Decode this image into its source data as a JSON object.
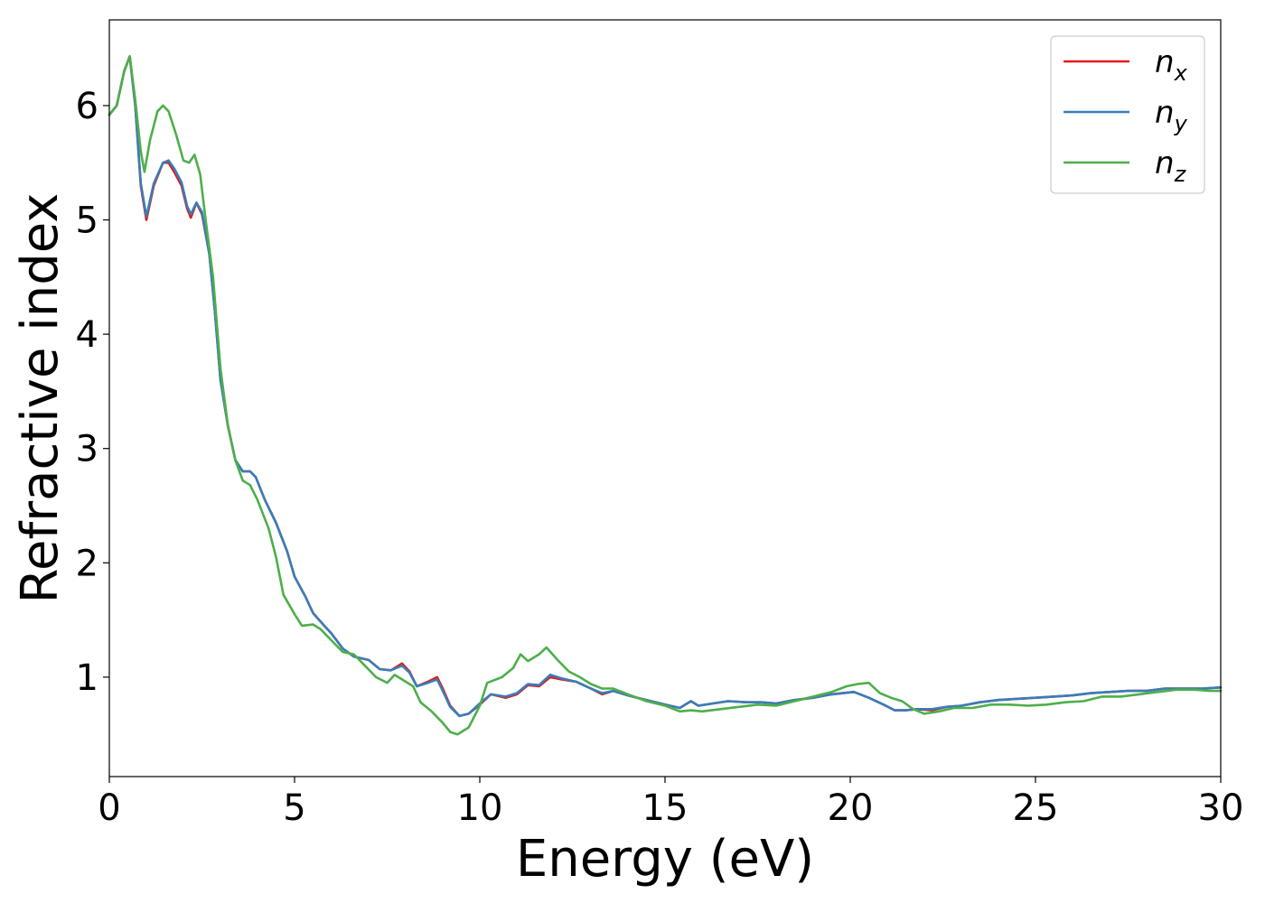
{
  "chart_data": {
    "type": "line",
    "title": "",
    "xlabel": "Energy (eV)",
    "ylabel": "Refractive index",
    "xlim": [
      0,
      30
    ],
    "ylim": [
      0.13,
      6.75
    ],
    "xticks": [
      0,
      5,
      10,
      15,
      20,
      25,
      30
    ],
    "xtick_labels": [
      "0",
      "5",
      "10",
      "15",
      "20",
      "25",
      "30"
    ],
    "yticks": [
      1,
      2,
      3,
      4,
      5,
      6
    ],
    "ytick_labels": [
      "1",
      "2",
      "3",
      "4",
      "5",
      "6"
    ],
    "grid": false,
    "legend_position": "top-right",
    "series": [
      {
        "name": "n_x",
        "label_base": "n",
        "label_sub": "x",
        "color": "#e41a1c",
        "points": [
          [
            0,
            5.92
          ],
          [
            0.2,
            6.0
          ],
          [
            0.4,
            6.3
          ],
          [
            0.55,
            6.43
          ],
          [
            0.7,
            6.0
          ],
          [
            0.85,
            5.3
          ],
          [
            1.0,
            5.0
          ],
          [
            1.2,
            5.3
          ],
          [
            1.45,
            5.5
          ],
          [
            1.6,
            5.5
          ],
          [
            1.75,
            5.42
          ],
          [
            1.95,
            5.3
          ],
          [
            2.1,
            5.1
          ],
          [
            2.2,
            5.02
          ],
          [
            2.35,
            5.15
          ],
          [
            2.5,
            5.05
          ],
          [
            2.7,
            4.7
          ],
          [
            2.85,
            4.2
          ],
          [
            3.0,
            3.6
          ],
          [
            3.2,
            3.2
          ],
          [
            3.4,
            2.9
          ],
          [
            3.6,
            2.8
          ],
          [
            3.8,
            2.8
          ],
          [
            3.95,
            2.75
          ],
          [
            4.2,
            2.55
          ],
          [
            4.5,
            2.35
          ],
          [
            4.8,
            2.1
          ],
          [
            5.0,
            1.88
          ],
          [
            5.3,
            1.7
          ],
          [
            5.5,
            1.56
          ],
          [
            5.8,
            1.45
          ],
          [
            6.0,
            1.38
          ],
          [
            6.3,
            1.25
          ],
          [
            6.6,
            1.18
          ],
          [
            7.0,
            1.15
          ],
          [
            7.3,
            1.07
          ],
          [
            7.6,
            1.06
          ],
          [
            7.9,
            1.12
          ],
          [
            8.1,
            1.05
          ],
          [
            8.3,
            0.92
          ],
          [
            8.6,
            0.96
          ],
          [
            8.85,
            1.0
          ],
          [
            9.0,
            0.9
          ],
          [
            9.2,
            0.75
          ],
          [
            9.45,
            0.66
          ],
          [
            9.7,
            0.68
          ],
          [
            10.0,
            0.76
          ],
          [
            10.3,
            0.85
          ],
          [
            10.7,
            0.82
          ],
          [
            11.0,
            0.85
          ],
          [
            11.3,
            0.93
          ],
          [
            11.6,
            0.92
          ],
          [
            11.9,
            1.0
          ],
          [
            12.2,
            0.98
          ],
          [
            12.6,
            0.96
          ],
          [
            13.0,
            0.9
          ],
          [
            13.3,
            0.85
          ],
          [
            13.6,
            0.88
          ],
          [
            14.0,
            0.84
          ],
          [
            14.5,
            0.8
          ],
          [
            15.0,
            0.76
          ],
          [
            15.4,
            0.73
          ],
          [
            15.7,
            0.79
          ],
          [
            15.9,
            0.75
          ],
          [
            16.3,
            0.77
          ],
          [
            16.7,
            0.79
          ],
          [
            17.2,
            0.78
          ],
          [
            17.6,
            0.78
          ],
          [
            18.0,
            0.77
          ],
          [
            18.5,
            0.8
          ],
          [
            19.0,
            0.82
          ],
          [
            19.5,
            0.85
          ],
          [
            19.8,
            0.86
          ],
          [
            20.1,
            0.87
          ],
          [
            20.5,
            0.82
          ],
          [
            20.9,
            0.76
          ],
          [
            21.2,
            0.71
          ],
          [
            21.5,
            0.71
          ],
          [
            21.8,
            0.72
          ],
          [
            22.2,
            0.71
          ],
          [
            22.6,
            0.74
          ],
          [
            23.0,
            0.75
          ],
          [
            23.5,
            0.78
          ],
          [
            24.0,
            0.8
          ],
          [
            24.5,
            0.81
          ],
          [
            25.0,
            0.82
          ],
          [
            25.5,
            0.83
          ],
          [
            26.0,
            0.84
          ],
          [
            26.5,
            0.86
          ],
          [
            27.0,
            0.87
          ],
          [
            27.5,
            0.88
          ],
          [
            28.0,
            0.88
          ],
          [
            28.5,
            0.9
          ],
          [
            29.0,
            0.9
          ],
          [
            29.5,
            0.9
          ],
          [
            30.0,
            0.91
          ]
        ]
      },
      {
        "name": "n_y",
        "label_base": "n",
        "label_sub": "y",
        "color": "#377eb8",
        "points": [
          [
            0,
            5.92
          ],
          [
            0.2,
            6.0
          ],
          [
            0.4,
            6.3
          ],
          [
            0.55,
            6.43
          ],
          [
            0.7,
            6.0
          ],
          [
            0.85,
            5.32
          ],
          [
            1.0,
            5.03
          ],
          [
            1.2,
            5.32
          ],
          [
            1.45,
            5.5
          ],
          [
            1.6,
            5.52
          ],
          [
            1.75,
            5.45
          ],
          [
            1.95,
            5.33
          ],
          [
            2.1,
            5.12
          ],
          [
            2.2,
            5.05
          ],
          [
            2.35,
            5.15
          ],
          [
            2.5,
            5.07
          ],
          [
            2.7,
            4.7
          ],
          [
            2.85,
            4.2
          ],
          [
            3.0,
            3.6
          ],
          [
            3.2,
            3.2
          ],
          [
            3.4,
            2.9
          ],
          [
            3.6,
            2.8
          ],
          [
            3.8,
            2.8
          ],
          [
            3.95,
            2.75
          ],
          [
            4.2,
            2.55
          ],
          [
            4.5,
            2.35
          ],
          [
            4.8,
            2.1
          ],
          [
            5.0,
            1.88
          ],
          [
            5.3,
            1.7
          ],
          [
            5.5,
            1.56
          ],
          [
            5.8,
            1.45
          ],
          [
            6.0,
            1.38
          ],
          [
            6.3,
            1.25
          ],
          [
            6.6,
            1.18
          ],
          [
            7.0,
            1.15
          ],
          [
            7.3,
            1.07
          ],
          [
            7.6,
            1.06
          ],
          [
            7.9,
            1.1
          ],
          [
            8.1,
            1.04
          ],
          [
            8.3,
            0.92
          ],
          [
            8.6,
            0.95
          ],
          [
            8.85,
            0.98
          ],
          [
            9.0,
            0.88
          ],
          [
            9.2,
            0.74
          ],
          [
            9.45,
            0.66
          ],
          [
            9.7,
            0.68
          ],
          [
            10.0,
            0.77
          ],
          [
            10.3,
            0.85
          ],
          [
            10.7,
            0.83
          ],
          [
            11.0,
            0.86
          ],
          [
            11.3,
            0.94
          ],
          [
            11.6,
            0.93
          ],
          [
            11.9,
            1.02
          ],
          [
            12.2,
            0.99
          ],
          [
            12.6,
            0.96
          ],
          [
            13.0,
            0.9
          ],
          [
            13.3,
            0.86
          ],
          [
            13.6,
            0.88
          ],
          [
            14.0,
            0.84
          ],
          [
            14.5,
            0.8
          ],
          [
            15.0,
            0.76
          ],
          [
            15.4,
            0.73
          ],
          [
            15.7,
            0.79
          ],
          [
            15.9,
            0.75
          ],
          [
            16.3,
            0.77
          ],
          [
            16.7,
            0.79
          ],
          [
            17.2,
            0.78
          ],
          [
            17.6,
            0.78
          ],
          [
            18.0,
            0.77
          ],
          [
            18.5,
            0.8
          ],
          [
            19.0,
            0.82
          ],
          [
            19.5,
            0.85
          ],
          [
            19.8,
            0.86
          ],
          [
            20.1,
            0.87
          ],
          [
            20.5,
            0.82
          ],
          [
            20.9,
            0.76
          ],
          [
            21.2,
            0.71
          ],
          [
            21.5,
            0.71
          ],
          [
            21.8,
            0.72
          ],
          [
            22.2,
            0.72
          ],
          [
            22.6,
            0.74
          ],
          [
            23.0,
            0.75
          ],
          [
            23.5,
            0.78
          ],
          [
            24.0,
            0.8
          ],
          [
            24.5,
            0.81
          ],
          [
            25.0,
            0.82
          ],
          [
            25.5,
            0.83
          ],
          [
            26.0,
            0.84
          ],
          [
            26.5,
            0.86
          ],
          [
            27.0,
            0.87
          ],
          [
            27.5,
            0.88
          ],
          [
            28.0,
            0.88
          ],
          [
            28.5,
            0.9
          ],
          [
            29.0,
            0.9
          ],
          [
            29.5,
            0.9
          ],
          [
            30.0,
            0.91
          ]
        ]
      },
      {
        "name": "n_z",
        "label_base": "n",
        "label_sub": "z",
        "color": "#4daf4a",
        "points": [
          [
            0,
            5.92
          ],
          [
            0.2,
            6.0
          ],
          [
            0.4,
            6.3
          ],
          [
            0.55,
            6.43
          ],
          [
            0.7,
            6.05
          ],
          [
            0.85,
            5.6
          ],
          [
            0.95,
            5.42
          ],
          [
            1.1,
            5.7
          ],
          [
            1.3,
            5.95
          ],
          [
            1.45,
            6.0
          ],
          [
            1.6,
            5.95
          ],
          [
            1.8,
            5.75
          ],
          [
            2.0,
            5.52
          ],
          [
            2.15,
            5.5
          ],
          [
            2.3,
            5.57
          ],
          [
            2.45,
            5.4
          ],
          [
            2.6,
            5.0
          ],
          [
            2.8,
            4.5
          ],
          [
            3.0,
            3.7
          ],
          [
            3.2,
            3.2
          ],
          [
            3.4,
            2.9
          ],
          [
            3.6,
            2.72
          ],
          [
            3.8,
            2.68
          ],
          [
            4.0,
            2.55
          ],
          [
            4.3,
            2.3
          ],
          [
            4.5,
            2.05
          ],
          [
            4.7,
            1.72
          ],
          [
            5.0,
            1.55
          ],
          [
            5.2,
            1.45
          ],
          [
            5.5,
            1.46
          ],
          [
            5.7,
            1.42
          ],
          [
            6.0,
            1.32
          ],
          [
            6.3,
            1.22
          ],
          [
            6.6,
            1.2
          ],
          [
            6.9,
            1.1
          ],
          [
            7.2,
            1.0
          ],
          [
            7.5,
            0.95
          ],
          [
            7.7,
            1.02
          ],
          [
            7.9,
            0.98
          ],
          [
            8.2,
            0.92
          ],
          [
            8.4,
            0.78
          ],
          [
            8.7,
            0.7
          ],
          [
            9.0,
            0.6
          ],
          [
            9.2,
            0.52
          ],
          [
            9.4,
            0.5
          ],
          [
            9.7,
            0.56
          ],
          [
            10.0,
            0.75
          ],
          [
            10.2,
            0.95
          ],
          [
            10.6,
            1.0
          ],
          [
            10.9,
            1.08
          ],
          [
            11.1,
            1.2
          ],
          [
            11.3,
            1.14
          ],
          [
            11.6,
            1.2
          ],
          [
            11.8,
            1.26
          ],
          [
            12.1,
            1.15
          ],
          [
            12.4,
            1.05
          ],
          [
            12.7,
            1.0
          ],
          [
            13.0,
            0.94
          ],
          [
            13.3,
            0.9
          ],
          [
            13.6,
            0.9
          ],
          [
            14.0,
            0.85
          ],
          [
            14.5,
            0.79
          ],
          [
            15.0,
            0.75
          ],
          [
            15.4,
            0.7
          ],
          [
            15.7,
            0.71
          ],
          [
            16.0,
            0.7
          ],
          [
            16.5,
            0.72
          ],
          [
            17.0,
            0.74
          ],
          [
            17.5,
            0.76
          ],
          [
            18.0,
            0.75
          ],
          [
            18.5,
            0.79
          ],
          [
            19.0,
            0.83
          ],
          [
            19.5,
            0.87
          ],
          [
            19.9,
            0.92
          ],
          [
            20.2,
            0.94
          ],
          [
            20.5,
            0.95
          ],
          [
            20.8,
            0.86
          ],
          [
            21.1,
            0.82
          ],
          [
            21.4,
            0.79
          ],
          [
            21.7,
            0.72
          ],
          [
            22.0,
            0.68
          ],
          [
            22.4,
            0.7
          ],
          [
            22.8,
            0.73
          ],
          [
            23.3,
            0.73
          ],
          [
            23.8,
            0.76
          ],
          [
            24.3,
            0.76
          ],
          [
            24.8,
            0.75
          ],
          [
            25.3,
            0.76
          ],
          [
            25.8,
            0.78
          ],
          [
            26.3,
            0.79
          ],
          [
            26.8,
            0.83
          ],
          [
            27.3,
            0.83
          ],
          [
            27.8,
            0.85
          ],
          [
            28.3,
            0.87
          ],
          [
            28.8,
            0.89
          ],
          [
            29.3,
            0.89
          ],
          [
            29.7,
            0.88
          ],
          [
            30.0,
            0.88
          ]
        ]
      }
    ]
  }
}
